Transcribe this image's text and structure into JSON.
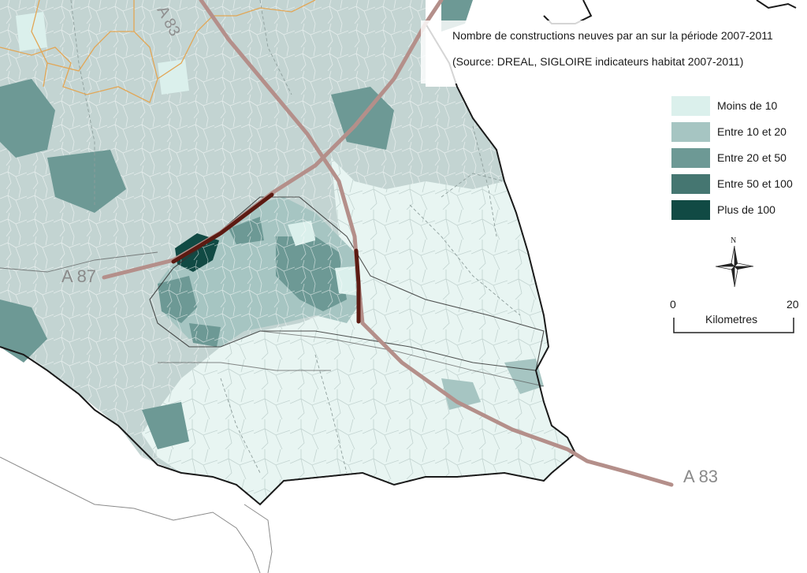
{
  "title": {
    "line1": "Nombre de constructions neuves par an sur la période 2007-2011",
    "line2": "(Source: DREAL, SIGLOIRE indicateurs habitat 2007-2011)"
  },
  "legend": {
    "items": [
      {
        "label": "Moins de 10",
        "color": "#dbf0ec"
      },
      {
        "label": "Entre 10 et 20",
        "color": "#a6c5c2"
      },
      {
        "label": "Entre 20 et 50",
        "color": "#6d9995"
      },
      {
        "label": "Entre 50 et 100",
        "color": "#457671"
      },
      {
        "label": "Plus de 100",
        "color": "#114a44"
      }
    ]
  },
  "roads": {
    "a87": "A 87",
    "a83_southeast": "A 83",
    "a83_north": "A 83",
    "highway_color": "#b48f8a",
    "highlight_color": "#5c1a12"
  },
  "scale_bar": {
    "start": "0",
    "end": "20",
    "unit": "Kilometres"
  },
  "north_arrow": {
    "letter": "N"
  },
  "colors": {
    "outside_region": "#c7d6d4",
    "department_border": "#222222",
    "commune_border": "#ffffff",
    "regional_border": "#e2a655"
  }
}
